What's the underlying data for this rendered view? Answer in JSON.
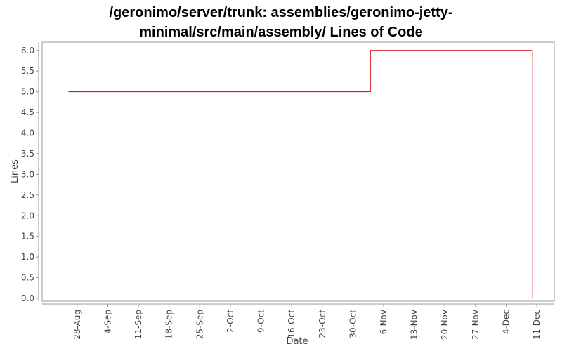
{
  "chart_data": {
    "type": "line",
    "title_lines": [
      "/geronimo/server/trunk: assemblies/geronimo-jetty-",
      "minimal/src/main/assembly/ Lines of Code"
    ],
    "xlabel": "Date",
    "ylabel": "Lines",
    "x_tick_labels": [
      "28-Aug",
      "4-Sep",
      "11-Sep",
      "18-Sep",
      "25-Sep",
      "2-Oct",
      "9-Oct",
      "16-Oct",
      "23-Oct",
      "30-Oct",
      "6-Nov",
      "13-Nov",
      "20-Nov",
      "27-Nov",
      "4-Dec",
      "11-Dec"
    ],
    "y_tick_labels": [
      "0.0",
      "0.5",
      "1.0",
      "1.5",
      "2.0",
      "2.5",
      "3.0",
      "3.5",
      "4.0",
      "4.5",
      "5.0",
      "5.5",
      "6.0"
    ],
    "ylim": [
      0,
      6.2
    ],
    "grid": false,
    "line_style": "step",
    "series": [
      {
        "color": "#cc0000",
        "points": [
          {
            "x": "2006-08-26",
            "y": 5
          },
          {
            "x": "2006-11-03",
            "y": 6
          },
          {
            "x": "2006-12-10",
            "y": 0
          }
        ]
      }
    ]
  }
}
